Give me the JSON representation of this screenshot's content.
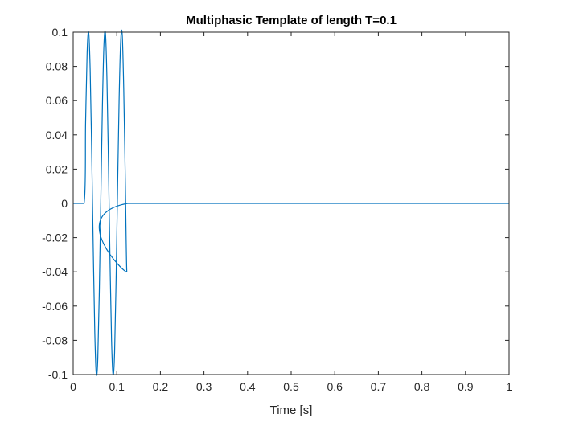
{
  "chart_data": {
    "type": "line",
    "title": "Multiphasic Template of length T=0.1",
    "xlabel": "Time [s]",
    "ylabel": "",
    "xlim": [
      0,
      1
    ],
    "ylim": [
      -0.1,
      0.1
    ],
    "xticks": [
      0,
      0.1,
      0.2,
      0.3,
      0.4,
      0.5,
      0.6,
      0.7,
      0.8,
      0.9,
      1
    ],
    "xtick_labels": [
      "0",
      "0.1",
      "0.2",
      "0.3",
      "0.4",
      "0.5",
      "0.6",
      "0.7",
      "0.8",
      "0.9",
      "1"
    ],
    "yticks": [
      -0.1,
      -0.08,
      -0.06,
      -0.04,
      -0.02,
      0,
      0.02,
      0.04,
      0.06,
      0.08,
      0.1
    ],
    "ytick_labels": [
      "-0.1",
      "-0.08",
      "-0.06",
      "-0.04",
      "-0.02",
      "0",
      "0.02",
      "0.04",
      "0.06",
      "0.08",
      "0.1"
    ],
    "grid": false,
    "box": true,
    "series": [
      {
        "color": "#0072BD",
        "x": [
          0,
          0.025,
          0.0285,
          0.032,
          0.0355,
          0.039,
          0.0425,
          0.046,
          0.0495,
          0.053,
          0.0565,
          0.06,
          0.0635,
          0.067,
          0.0705,
          0.074,
          0.0775,
          0.081,
          0.0845,
          0.088,
          0.0915,
          0.095,
          0.0985,
          0.102,
          0.1055,
          0.109,
          0.1125,
          0.116,
          0.1195,
          0.123,
          0.125,
          1
        ],
        "y": [
          0,
          0,
          0.0472,
          0.0881,
          0.0999,
          0.0777,
          0.0295,
          -0.0258,
          -0.0749,
          -0.0998,
          -0.0904,
          -0.0503,
          0.0034,
          0.056,
          0.0923,
          0.0995,
          0.072,
          0.022,
          -0.0333,
          -0.0798,
          -0.1,
          -0.0872,
          -0.0433,
          0.0111,
          0.0622,
          0.095,
          0.0987,
          0.0661,
          0.0144,
          -0.04,
          0,
          0
        ]
      }
    ]
  }
}
